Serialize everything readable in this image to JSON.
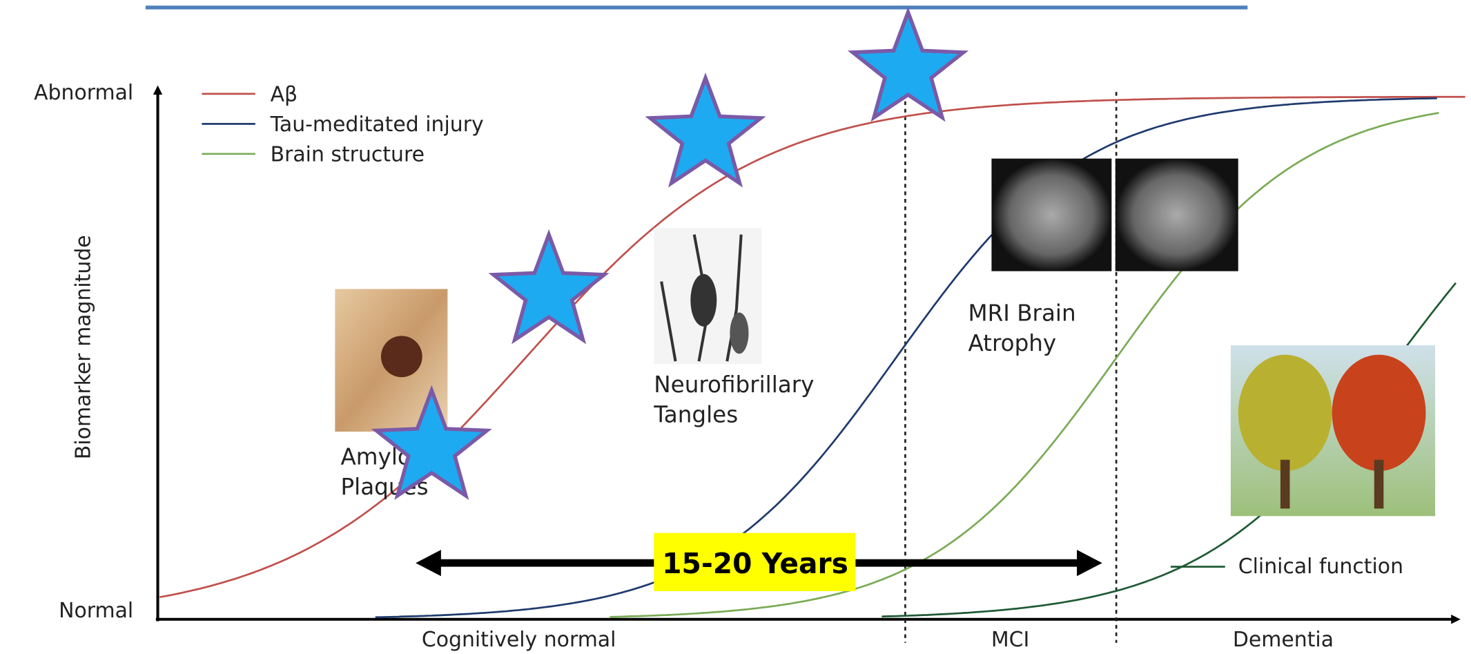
{
  "axis": {
    "y_top": "Abnormal",
    "y_bottom": "Normal",
    "y_label": "Biomarker magnitude"
  },
  "legend": [
    "Aβ",
    "Tau-meditated injury",
    "Brain structure",
    "Clinical function"
  ],
  "annotations": {
    "amyloid": [
      "Amyloid",
      "Plaques"
    ],
    "tangles": [
      "Neurofibrillary",
      "Tangles"
    ],
    "mri": [
      "MRI Brain",
      "Atrophy"
    ]
  },
  "timeline_label": "15-20 Years",
  "stages": [
    "Cognitively normal",
    "MCI",
    "Dementia"
  ]
}
